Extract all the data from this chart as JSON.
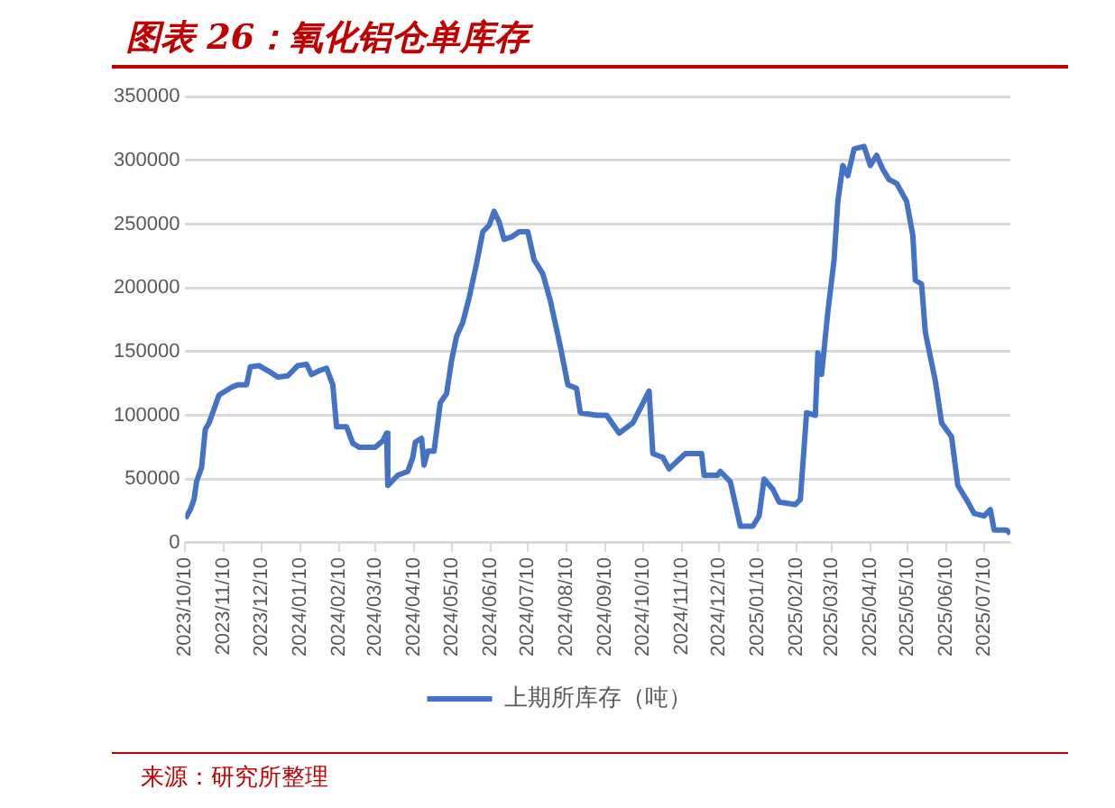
{
  "chart_data": {
    "type": "line",
    "title": "图表 26：氧化铝仓单库存",
    "annotations": [
      "来源：研究所整理"
    ],
    "xlim": [
      "2023-10-10",
      "2025-07-31"
    ],
    "xticks": [
      {
        "value": "2023-10-10",
        "label": "2023/10/10"
      },
      {
        "value": "2023-11-10",
        "label": "2023/11/10"
      },
      {
        "value": "2023-12-10",
        "label": "2023/12/10"
      },
      {
        "value": "2024-01-10",
        "label": "2024/01/10"
      },
      {
        "value": "2024-02-10",
        "label": "2024/02/10"
      },
      {
        "value": "2024-03-10",
        "label": "2024/03/10"
      },
      {
        "value": "2024-04-10",
        "label": "2024/04/10"
      },
      {
        "value": "2024-05-10",
        "label": "2024/05/10"
      },
      {
        "value": "2024-06-10",
        "label": "2024/06/10"
      },
      {
        "value": "2024-07-10",
        "label": "2024/07/10"
      },
      {
        "value": "2024-08-10",
        "label": "2024/08/10"
      },
      {
        "value": "2024-09-10",
        "label": "2024/09/10"
      },
      {
        "value": "2024-10-10",
        "label": "2024/10/10"
      },
      {
        "value": "2024-11-10",
        "label": "2024/11/10"
      },
      {
        "value": "2024-12-10",
        "label": "2024/12/10"
      },
      {
        "value": "2025-01-10",
        "label": "2025/01/10"
      },
      {
        "value": "2025-02-10",
        "label": "2025/02/10"
      },
      {
        "value": "2025-03-10",
        "label": "2025/03/10"
      },
      {
        "value": "2025-04-10",
        "label": "2025/04/10"
      },
      {
        "value": "2025-05-10",
        "label": "2025/05/10"
      },
      {
        "value": "2025-06-10",
        "label": "2025/06/10"
      },
      {
        "value": "2025-07-10",
        "label": "2025/07/10"
      }
    ],
    "ylim": [
      0,
      350000
    ],
    "yticks": [
      0,
      50000,
      100000,
      150000,
      200000,
      250000,
      300000,
      350000
    ],
    "grid": "y",
    "legend": "bottom",
    "marker": "none",
    "line_style": "solid",
    "x": [
      "2023-10-10",
      "2023-10-14",
      "2023-10-17",
      "2023-10-19",
      "2023-10-23",
      "2023-10-26",
      "2023-10-29",
      "2023-11-02",
      "2023-11-06",
      "2023-11-11",
      "2023-11-16",
      "2023-11-21",
      "2023-11-28",
      "2023-12-01",
      "2023-12-08",
      "2023-12-15",
      "2023-12-23",
      "2023-12-31",
      "2024-01-08",
      "2024-01-15",
      "2024-01-19",
      "2024-01-25",
      "2024-01-31",
      "2024-02-05",
      "2024-02-08",
      "2024-02-16",
      "2024-02-21",
      "2024-02-26",
      "2024-03-10",
      "2024-03-16",
      "2024-03-19",
      "2024-03-20",
      "2024-03-28",
      "2024-04-05",
      "2024-04-09",
      "2024-04-11",
      "2024-04-16",
      "2024-04-18",
      "2024-04-21",
      "2024-04-26",
      "2024-05-01",
      "2024-05-06",
      "2024-05-10",
      "2024-05-14",
      "2024-05-19",
      "2024-05-24",
      "2024-05-30",
      "2024-06-04",
      "2024-06-09",
      "2024-06-13",
      "2024-06-17",
      "2024-06-21",
      "2024-06-27",
      "2024-07-03",
      "2024-07-10",
      "2024-07-15",
      "2024-07-22",
      "2024-07-28",
      "2024-08-05",
      "2024-08-11",
      "2024-08-18",
      "2024-08-21",
      "2024-09-03",
      "2024-09-11",
      "2024-09-21",
      "2024-10-02",
      "2024-10-15",
      "2024-10-18",
      "2024-10-26",
      "2024-10-31",
      "2024-11-13",
      "2024-11-26",
      "2024-11-28",
      "2024-12-09",
      "2024-12-11",
      "2024-12-19",
      "2024-12-27",
      "2025-01-06",
      "2025-01-11",
      "2025-01-15",
      "2025-01-22",
      "2025-01-27",
      "2025-02-09",
      "2025-02-13",
      "2025-02-18",
      "2025-02-25",
      "2025-02-27",
      "2025-03-02",
      "2025-03-07",
      "2025-03-12",
      "2025-03-15",
      "2025-03-19",
      "2025-03-23",
      "2025-03-28",
      "2025-04-05",
      "2025-04-10",
      "2025-04-15",
      "2025-04-20",
      "2025-04-25",
      "2025-05-01",
      "2025-05-09",
      "2025-05-14",
      "2025-05-16",
      "2025-05-21",
      "2025-05-24",
      "2025-06-01",
      "2025-06-06",
      "2025-06-14",
      "2025-06-19",
      "2025-06-27",
      "2025-07-02",
      "2025-07-10",
      "2025-07-15",
      "2025-07-18",
      "2025-07-28",
      "2025-07-31"
    ],
    "series": [
      {
        "name": "上期所库存（吨）",
        "color": "#4472c4",
        "values": [
          19000,
          26000,
          34000,
          48000,
          59000,
          89000,
          94000,
          105000,
          116000,
          119000,
          122000,
          124000,
          124000,
          138000,
          139000,
          135000,
          130000,
          131000,
          139000,
          140000,
          132000,
          135000,
          137000,
          124000,
          91000,
          91000,
          78000,
          75000,
          75000,
          80000,
          86000,
          45000,
          53000,
          56000,
          67000,
          79000,
          82000,
          61000,
          72000,
          72000,
          110000,
          117000,
          143000,
          162000,
          173000,
          192000,
          219000,
          244000,
          249000,
          260000,
          252000,
          238000,
          240000,
          244000,
          244000,
          222000,
          211000,
          190000,
          154000,
          124000,
          121000,
          102000,
          100000,
          100000,
          86000,
          94000,
          119000,
          70000,
          67000,
          58000,
          70000,
          70000,
          53000,
          53000,
          56000,
          48000,
          13000,
          13000,
          21000,
          50000,
          42000,
          32000,
          30000,
          34000,
          102000,
          100000,
          149000,
          132000,
          181000,
          222000,
          268000,
          296000,
          288000,
          309000,
          311000,
          296000,
          304000,
          293000,
          285000,
          282000,
          268000,
          241000,
          206000,
          203000,
          165000,
          127000,
          94000,
          83000,
          45000,
          32000,
          23000,
          21000,
          26000,
          10000,
          10000,
          7000
        ]
      }
    ]
  }
}
